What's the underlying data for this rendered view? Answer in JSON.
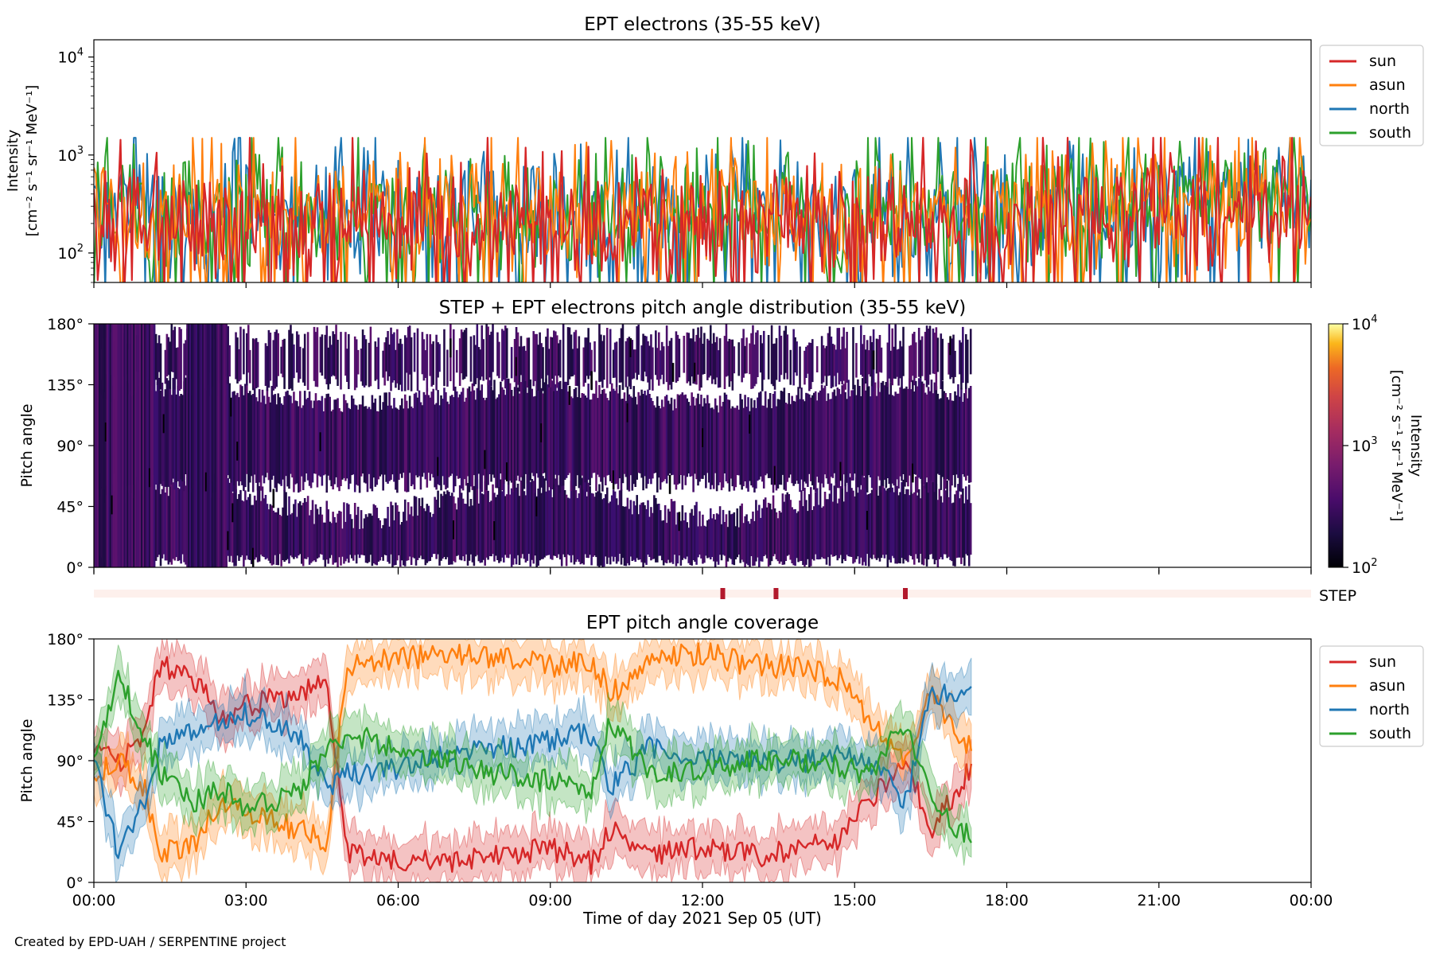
{
  "footer": "Created by EPD-UAH / SERPENTINE project",
  "time_axis": {
    "label": "Time of day 2021 Sep 05 (UT)",
    "ticks": [
      "00:00",
      "03:00",
      "06:00",
      "09:00",
      "12:00",
      "15:00",
      "18:00",
      "21:00",
      "00:00"
    ],
    "range_hours": [
      0,
      24
    ]
  },
  "chart_data": [
    {
      "type": "line",
      "title": "EPT electrons (35-55 keV)",
      "ylabel_line1": "Intensity",
      "ylabel_line2": "[cm⁻² s⁻¹ sr⁻¹ MeV⁻¹]",
      "yscale": "log",
      "ylim": [
        50,
        15000
      ],
      "yticks": [
        {
          "label": "10",
          "sup": "2",
          "value": 100
        },
        {
          "label": "10",
          "sup": "3",
          "value": 1000
        },
        {
          "label": "10",
          "sup": "4",
          "value": 10000
        }
      ],
      "legend_position": "right of plot, top",
      "data_end_hours": 24,
      "series": [
        {
          "name": "sun",
          "color": "#d62728",
          "typical": 180,
          "x_hours": [
            0,
            3,
            6,
            9,
            12,
            15,
            18,
            21,
            24
          ],
          "values": [
            230,
            200,
            190,
            180,
            190,
            200,
            230,
            300,
            280
          ]
        },
        {
          "name": "asun",
          "color": "#ff7f0e",
          "typical": 260,
          "x_hours": [
            0,
            3,
            6,
            9,
            12,
            15,
            18,
            21,
            24
          ],
          "values": [
            300,
            270,
            260,
            270,
            270,
            280,
            300,
            380,
            380
          ]
        },
        {
          "name": "north",
          "color": "#1f77b4",
          "typical": 240,
          "x_hours": [
            0,
            3,
            6,
            9,
            12,
            15,
            18,
            21,
            24
          ],
          "values": [
            290,
            260,
            250,
            250,
            260,
            270,
            290,
            360,
            370
          ]
        },
        {
          "name": "south",
          "color": "#2ca02c",
          "typical": 240,
          "x_hours": [
            0,
            3,
            6,
            9,
            12,
            15,
            18,
            21,
            24
          ],
          "values": [
            290,
            260,
            250,
            250,
            260,
            270,
            300,
            380,
            400
          ]
        }
      ]
    },
    {
      "type": "heatmap",
      "title": "STEP + EPT electrons pitch angle distribution (35-55 keV)",
      "ylabel": "Pitch angle",
      "yticks": [
        "0°",
        "45°",
        "90°",
        "135°",
        "180°"
      ],
      "ylim": [
        0,
        180
      ],
      "data_end_hours": 17.3,
      "colorbar": {
        "label_line1": "Intensity",
        "label_line2": "[cm⁻² s⁻¹ sr⁻¹ MeV⁻¹]",
        "scale": "log",
        "range": [
          100,
          10000
        ],
        "ticks": [
          {
            "label": "10",
            "sup": "2"
          },
          {
            "label": "10",
            "sup": "3"
          },
          {
            "label": "10",
            "sup": "4"
          }
        ],
        "colormap": "inferno"
      },
      "step_bar": {
        "label": "STEP",
        "background": "#fdf0ec",
        "marker_color": "#b2182b",
        "markers_hours": [
          12.4,
          13.45,
          16.0
        ]
      }
    },
    {
      "type": "line",
      "title": "EPT pitch angle coverage",
      "ylabel": "Pitch angle",
      "yticks": [
        "0°",
        "45°",
        "90°",
        "135°",
        "180°"
      ],
      "ylim": [
        0,
        180
      ],
      "band": "shaded spread around each line",
      "legend_position": "right of plot, top",
      "data_end_hours": 17.3,
      "series": [
        {
          "name": "sun",
          "color": "#d62728",
          "x_hours": [
            0,
            0.5,
            1,
            1.3,
            2,
            2.5,
            3,
            4,
            4.6,
            5,
            6,
            7,
            8,
            9,
            9.8,
            10.2,
            11,
            12,
            13,
            14,
            14.7,
            15.3,
            16,
            16.5,
            17.2
          ],
          "values": [
            100,
            90,
            110,
            160,
            150,
            120,
            130,
            140,
            150,
            20,
            15,
            15,
            20,
            25,
            15,
            40,
            20,
            25,
            20,
            25,
            30,
            60,
            90,
            40,
            80
          ]
        },
        {
          "name": "asun",
          "color": "#ff7f0e",
          "x_hours": [
            0,
            0.5,
            1,
            1.3,
            2,
            2.5,
            3,
            4,
            4.6,
            5,
            6,
            7,
            8,
            9,
            9.8,
            10.2,
            11,
            12,
            13,
            14,
            14.7,
            15.3,
            16,
            16.5,
            17.2
          ],
          "values": [
            80,
            90,
            70,
            20,
            30,
            60,
            50,
            40,
            30,
            160,
            165,
            170,
            165,
            160,
            165,
            140,
            165,
            170,
            160,
            160,
            150,
            120,
            90,
            140,
            100
          ]
        },
        {
          "name": "north",
          "color": "#1f77b4",
          "x_hours": [
            0,
            0.5,
            1,
            1.3,
            2,
            2.5,
            3,
            4,
            4.6,
            5,
            6,
            7,
            8,
            9,
            9.8,
            10.2,
            11,
            12,
            13,
            14,
            14.7,
            15.3,
            16,
            16.5,
            17.2
          ],
          "values": [
            90,
            20,
            60,
            100,
            115,
            120,
            125,
            110,
            70,
            80,
            85,
            95,
            100,
            105,
            110,
            70,
            100,
            95,
            90,
            90,
            95,
            90,
            60,
            140,
            140
          ]
        },
        {
          "name": "south",
          "color": "#2ca02c",
          "x_hours": [
            0,
            0.5,
            1,
            1.3,
            2,
            2.5,
            3,
            4,
            4.6,
            5,
            6,
            7,
            8,
            9,
            9.8,
            10.2,
            11,
            12,
            13,
            14,
            14.7,
            15.3,
            16,
            16.5,
            17.2
          ],
          "values": [
            90,
            150,
            110,
            80,
            60,
            70,
            55,
            65,
            100,
            110,
            100,
            90,
            80,
            75,
            70,
            120,
            80,
            85,
            90,
            90,
            85,
            80,
            120,
            60,
            35
          ]
        }
      ]
    }
  ]
}
